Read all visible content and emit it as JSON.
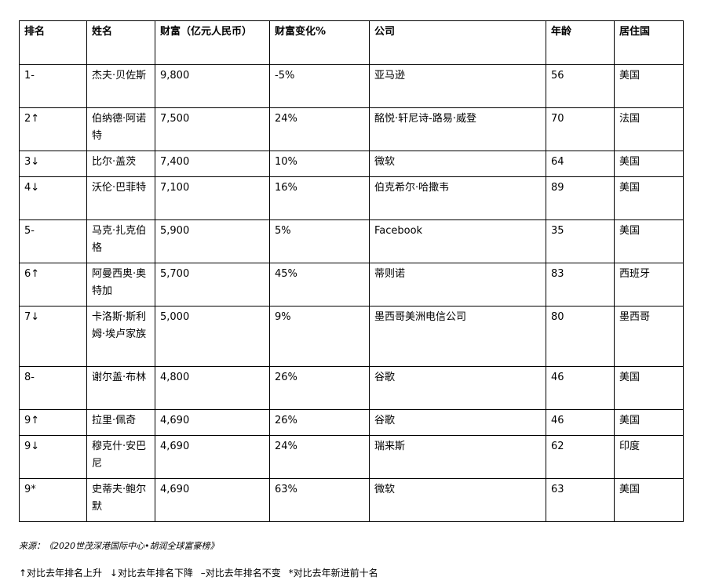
{
  "table": {
    "headers": [
      "排名",
      "姓名",
      "财富（亿元人民币）",
      "财富变化%",
      "公司",
      "年龄",
      "居住国"
    ],
    "rows": [
      [
        "1-",
        "杰夫·贝佐斯",
        "9,800",
        "-5%",
        "亚马逊",
        "56",
        "美国"
      ],
      [
        "2↑",
        "伯纳德·阿诺特",
        "7,500",
        "24%",
        "酩悦·轩尼诗-路易·威登",
        "70",
        "法国"
      ],
      [
        "3↓",
        "比尔·盖茨",
        "7,400",
        "10%",
        "微软",
        "64",
        "美国"
      ],
      [
        "4↓",
        "沃伦·巴菲特",
        "7,100",
        "16%",
        "伯克希尔·哈撒韦",
        "89",
        "美国"
      ],
      [
        "5-",
        "马克·扎克伯格",
        "5,900",
        "5%",
        "Facebook",
        "35",
        "美国"
      ],
      [
        "6↑",
        "阿曼西奥·奥特加",
        "5,700",
        "45%",
        "蒂则诺",
        "83",
        "西班牙"
      ],
      [
        "7↓",
        "卡洛斯·斯利姆·埃卢家族",
        "5,000",
        "9%",
        "墨西哥美洲电信公司",
        "80",
        "墨西哥"
      ],
      [
        "8-",
        "谢尔盖·布林",
        "4,800",
        "26%",
        "谷歌",
        "46",
        "美国"
      ],
      [
        "9↑",
        "拉里·佩奇",
        "4,690",
        "26%",
        "谷歌",
        "46",
        "美国"
      ],
      [
        "9↓",
        "穆克什·安巴尼",
        "4,690",
        "24%",
        "瑞来斯",
        "62",
        "印度"
      ],
      [
        "9*",
        "史蒂夫·鲍尔默",
        "4,690",
        "63%",
        "微软",
        "63",
        "美国"
      ]
    ]
  },
  "source": "来源：《2020世茂深港国际中心•胡润全球富豪榜》",
  "legend": [
    "↑对比去年排名上升",
    "↓对比去年排名下降",
    "–对比去年排名不变",
    "*对比去年新进前十名"
  ]
}
